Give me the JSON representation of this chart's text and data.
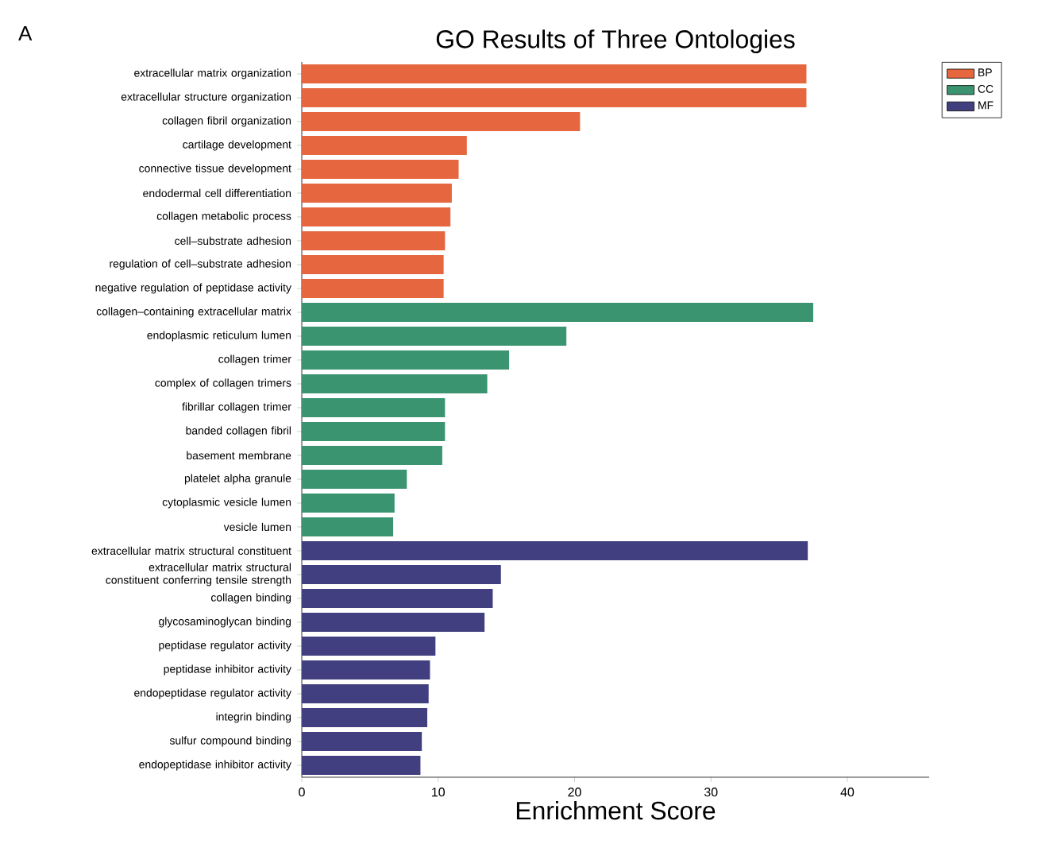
{
  "chart_data": {
    "type": "bar",
    "orientation": "horizontal",
    "title": "GO Results of Three Ontologies",
    "xlabel": "Enrichment Score",
    "categories": [
      "extracellular matrix organization",
      "extracellular structure organization",
      "collagen fibril organization",
      "cartilage development",
      "connective tissue development",
      "endodermal cell differentiation",
      "collagen metabolic process",
      "cell–substrate adhesion",
      "regulation of cell–substrate adhesion",
      "negative regulation of peptidase activity",
      "collagen–containing extracellular matrix",
      "endoplasmic reticulum lumen",
      "collagen trimer",
      "complex of collagen trimers",
      "fibrillar collagen trimer",
      "banded collagen fibril",
      "basement membrane",
      "platelet alpha granule",
      "cytoplasmic vesicle lumen",
      "vesicle lumen",
      "extracellular matrix structural constituent",
      "extracellular matrix structural constituent conferring tensile strength",
      "collagen binding",
      "glycosaminoglycan binding",
      "peptidase regulator activity",
      "peptidase inhibitor activity",
      "endopeptidase regulator activity",
      "integrin binding",
      "sulfur compound binding",
      "endopeptidase inhibitor activity"
    ],
    "series": [
      {
        "name": "BP",
        "color": "#e5663f",
        "values": [
          37.0,
          37.0,
          20.4,
          12.1,
          11.5,
          11.0,
          10.9,
          10.5,
          10.4,
          10.4,
          null,
          null,
          null,
          null,
          null,
          null,
          null,
          null,
          null,
          null,
          null,
          null,
          null,
          null,
          null,
          null,
          null,
          null,
          null,
          null
        ]
      },
      {
        "name": "CC",
        "color": "#3a9470",
        "values": [
          null,
          null,
          null,
          null,
          null,
          null,
          null,
          null,
          null,
          null,
          37.5,
          19.4,
          15.2,
          13.6,
          10.5,
          10.5,
          10.3,
          7.7,
          6.8,
          6.7,
          null,
          null,
          null,
          null,
          null,
          null,
          null,
          null,
          null,
          null
        ]
      },
      {
        "name": "MF",
        "color": "#413f7f",
        "values": [
          null,
          null,
          null,
          null,
          null,
          null,
          null,
          null,
          null,
          null,
          null,
          null,
          null,
          null,
          null,
          null,
          null,
          null,
          null,
          null,
          37.1,
          14.6,
          14.0,
          13.4,
          9.8,
          9.4,
          9.3,
          9.2,
          8.8,
          8.7
        ]
      }
    ],
    "xlim": [
      0,
      46
    ],
    "xticks": [
      0,
      10,
      20,
      30,
      40
    ],
    "legend": "top right",
    "annotations": [
      "A"
    ]
  }
}
